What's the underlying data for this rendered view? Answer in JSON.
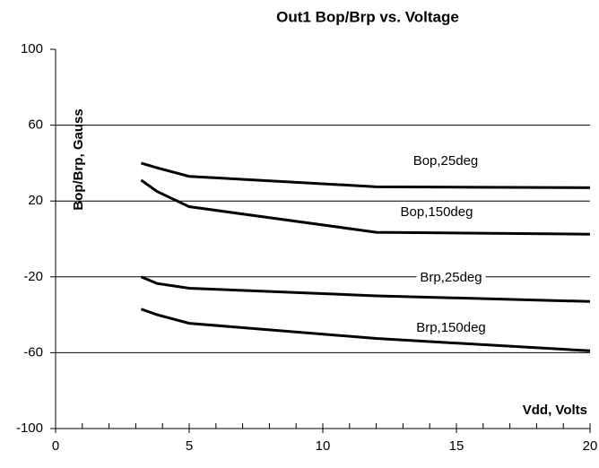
{
  "chart_data": {
    "type": "line",
    "title": "Out1 Bop/Brp vs. Voltage",
    "y_label": "Bop/Brp, Gauss",
    "x_label": "Vdd, Volts",
    "xlim": [
      0,
      20
    ],
    "xticks": [
      0,
      5,
      10,
      15,
      20
    ],
    "x_minor_ticks": [
      1,
      2,
      3,
      4,
      6,
      7,
      8,
      9,
      11,
      12,
      13,
      14,
      16,
      17,
      18,
      19
    ],
    "ylim": [
      -100,
      100
    ],
    "yticks": [
      -100,
      -60,
      -20,
      20,
      60,
      100
    ],
    "grid": true,
    "series": [
      {
        "name": "Bop,25deg",
        "color": "#000000",
        "x": [
          3.2,
          3.8,
          5,
          12,
          20
        ],
        "values": [
          40,
          37.5,
          33,
          27.5,
          27
        ]
      },
      {
        "name": "Bop,150deg",
        "color": "#000000",
        "x": [
          3.2,
          3.8,
          5,
          12,
          20
        ],
        "values": [
          31,
          25,
          17,
          3.5,
          2.5
        ]
      },
      {
        "name": "Brp,25deg",
        "color": "#000000",
        "x": [
          3.2,
          3.8,
          5,
          12,
          20
        ],
        "values": [
          -20,
          -23.5,
          -26,
          -30,
          -33
        ]
      },
      {
        "name": "Brp,150deg",
        "color": "#000000",
        "x": [
          3.2,
          3.8,
          5,
          12,
          20
        ],
        "values": [
          -37,
          -40,
          -44.5,
          -52.5,
          -59
        ]
      }
    ]
  }
}
